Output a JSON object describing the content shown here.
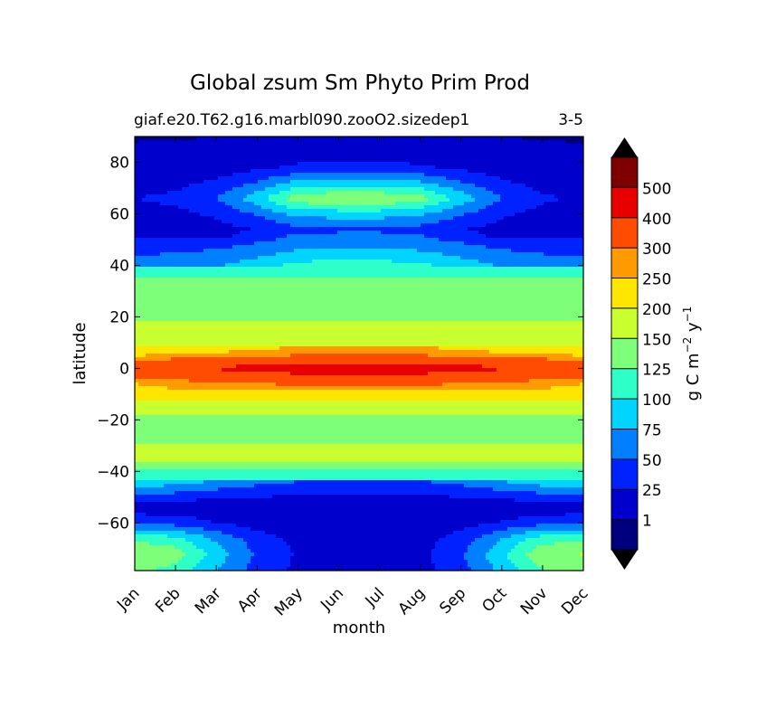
{
  "chart_data": {
    "type": "contourf",
    "title": "Global zsum Sm Phyto Prim Prod",
    "subtitle_left": "giaf.e20.T62.g16.marbl090.zooO2.sizedep1",
    "subtitle_right": "3-5",
    "xlabel": "month",
    "ylabel": "latitude",
    "x_ticklabels": [
      "Jan",
      "Feb",
      "Mar",
      "Apr",
      "May",
      "Jun",
      "Jul",
      "Aug",
      "Sep",
      "Oct",
      "Nov",
      "Dec"
    ],
    "xlim": [
      0,
      11
    ],
    "ylim": [
      -78.5,
      90
    ],
    "y_ticks": [
      -60,
      -40,
      -20,
      0,
      20,
      40,
      60,
      80
    ],
    "y_ticklabels": [
      "−60",
      "−40",
      "−20",
      "0",
      "20",
      "40",
      "60",
      "80"
    ],
    "colorbar": {
      "label_main": "g C m",
      "label_exp1": "−2",
      "label_mid": " y",
      "label_exp2": "−1",
      "extend": "both",
      "levels": [
        0,
        1,
        25,
        50,
        75,
        100,
        125,
        150,
        200,
        250,
        300,
        400,
        500,
        600
      ],
      "tick_labels": [
        "1",
        "25",
        "50",
        "75",
        "100",
        "125",
        "150",
        "200",
        "250",
        "300",
        "400",
        "500"
      ],
      "colors": [
        "#00007f",
        "#0000cd",
        "#0022ff",
        "#0080ff",
        "#00d4ff",
        "#2effc9",
        "#7dff7a",
        "#c9ff2e",
        "#ffe600",
        "#ff9a00",
        "#ff4c00",
        "#e80000",
        "#7f0000"
      ],
      "under_color": "#000000",
      "over_color": "#000000"
    },
    "lat_profile": {
      "lat": [
        -78.5,
        -72,
        -66,
        -60,
        -54,
        -48,
        -42,
        -36,
        -30,
        -24,
        -18,
        -12,
        -6,
        -3,
        0,
        3,
        6,
        12,
        18,
        24,
        30,
        36,
        42,
        48,
        54,
        60,
        66,
        72,
        78,
        84,
        90
      ],
      "value": [
        120,
        140,
        110,
        40,
        10,
        55,
        110,
        150,
        150,
        140,
        150,
        200,
        250,
        310,
        360,
        300,
        220,
        175,
        150,
        140,
        150,
        120,
        90,
        60,
        35,
        70,
        120,
        70,
        25,
        10,
        2
      ]
    },
    "seasonal_north": [
      0.05,
      0.1,
      0.25,
      0.55,
      0.95,
      1.0,
      1.0,
      0.9,
      0.55,
      0.25,
      0.08,
      0.03
    ],
    "seasonal_south": [
      1.0,
      0.9,
      0.55,
      0.25,
      0.08,
      0.03,
      0.02,
      0.05,
      0.25,
      0.6,
      0.95,
      1.0
    ]
  }
}
